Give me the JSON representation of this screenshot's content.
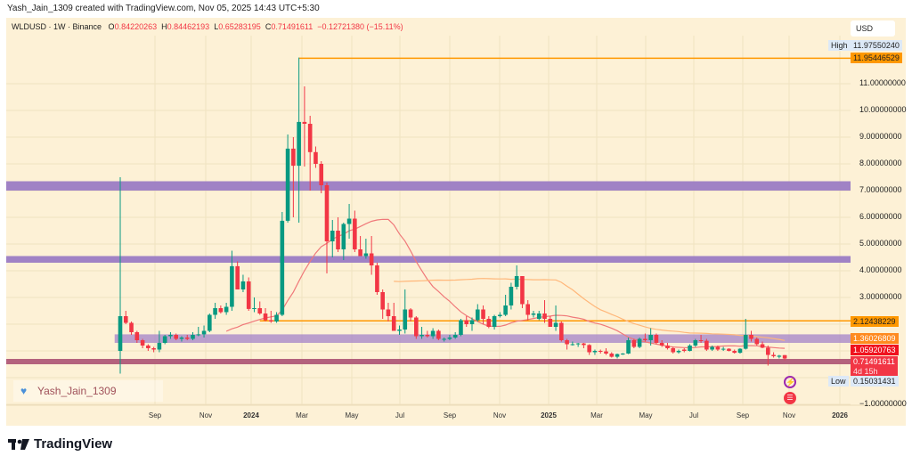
{
  "credit": "Yash_Jain_1309 created with TradingView.com, Nov 05, 2025 14:43 UTC+5:30",
  "legend": {
    "symbol": "WLDUSD · 1W · Binance",
    "o_label": "O",
    "o": "0.84220263",
    "h_label": "H",
    "h": "0.84462193",
    "l_label": "L",
    "l": "0.65283195",
    "c_label": "C",
    "c": "0.71491611",
    "change": "−0.12721380 (−15.11%)"
  },
  "currency": "USD",
  "price_axis": {
    "labels": [
      "11.00000000",
      "10.00000000",
      "9.00000000",
      "8.00000000",
      "7.00000000",
      "6.00000000",
      "5.00000000",
      "4.00000000",
      "3.00000000",
      "−1.00000000"
    ],
    "values": [
      11,
      10,
      9,
      8,
      7,
      6,
      5,
      4,
      3,
      -1
    ]
  },
  "tags": {
    "high_label": "High",
    "high": "11.97550240",
    "line_top": "11.95446529",
    "line_mid": "2.12438229",
    "ma_slow": "1.36026809",
    "ma_fast": "1.05920763",
    "last": "0.71491611",
    "countdown": "4d 15h",
    "low_label": "Low",
    "low": "0.15031431"
  },
  "time_axis": [
    "Sep",
    "Nov",
    "2024",
    "Mar",
    "May",
    "Jul",
    "Sep",
    "Nov",
    "2025",
    "Mar",
    "May",
    "Jul",
    "Sep",
    "Nov",
    "2026"
  ],
  "signature": "Yash_Jain_1309",
  "brand": "TradingView",
  "colors": {
    "up": "#089981",
    "down": "#f23645",
    "zone": "#9b7bc4",
    "zone_light": "#a98ac9",
    "zone_bottom": "#b05a78",
    "hline": "#ff9800",
    "ma_fast": "#f0797a",
    "ma_slow": "#ffb77a",
    "background": "#fdf1d6"
  },
  "chart_data": {
    "type": "candlestick",
    "interval": "1W",
    "first_week": "2023-07-24",
    "y_range": [
      -1,
      13
    ],
    "grid": true,
    "indicators": [
      {
        "type": "SMA",
        "period": 20,
        "color": "#f0797a"
      },
      {
        "type": "SMA",
        "period": 50,
        "color": "#ffb77a"
      }
    ],
    "horizontal_lines": [
      {
        "price": 11.95446529,
        "from_week": 32
      },
      {
        "price": 2.12438229,
        "from_week": 25
      }
    ],
    "zones": [
      {
        "from": 7.0,
        "to": 7.35,
        "from_week": -22
      },
      {
        "from": 4.3,
        "to": 4.55,
        "from_week": -22
      },
      {
        "from": 1.3,
        "to": 1.62,
        "from_week": -1
      },
      {
        "from": 0.5,
        "to": 0.7,
        "from_week": -22
      }
    ],
    "candles": [
      [
        1.0,
        7.5,
        0.15,
        2.3
      ],
      [
        2.3,
        2.5,
        2.0,
        2.05
      ],
      [
        2.05,
        2.1,
        1.6,
        1.7
      ],
      [
        1.7,
        1.75,
        1.3,
        1.4
      ],
      [
        1.4,
        1.45,
        1.1,
        1.2
      ],
      [
        1.2,
        1.25,
        1.0,
        1.1
      ],
      [
        1.1,
        1.15,
        0.95,
        1.05
      ],
      [
        1.05,
        1.75,
        0.95,
        1.3
      ],
      [
        1.3,
        1.6,
        1.25,
        1.55
      ],
      [
        1.55,
        1.7,
        1.45,
        1.6
      ],
      [
        1.6,
        1.65,
        1.4,
        1.45
      ],
      [
        1.45,
        1.55,
        1.35,
        1.5
      ],
      [
        1.5,
        1.6,
        1.4,
        1.45
      ],
      [
        1.45,
        1.7,
        1.4,
        1.6
      ],
      [
        1.6,
        1.9,
        1.55,
        1.62
      ],
      [
        1.62,
        1.95,
        1.5,
        1.75
      ],
      [
        1.75,
        2.4,
        1.7,
        2.35
      ],
      [
        2.35,
        2.8,
        2.2,
        2.6
      ],
      [
        2.6,
        2.7,
        2.4,
        2.45
      ],
      [
        2.45,
        2.8,
        2.35,
        2.65
      ],
      [
        2.65,
        4.75,
        2.5,
        4.17
      ],
      [
        4.17,
        4.35,
        3.3,
        3.3
      ],
      [
        3.3,
        3.85,
        3.2,
        3.6
      ],
      [
        3.6,
        3.75,
        2.5,
        2.57
      ],
      [
        2.57,
        3.0,
        2.45,
        2.6
      ],
      [
        2.6,
        2.85,
        2.35,
        2.4
      ],
      [
        2.4,
        2.6,
        2.1,
        2.15
      ],
      [
        2.15,
        2.5,
        2.05,
        2.1
      ],
      [
        2.1,
        2.45,
        2.05,
        2.35
      ],
      [
        2.35,
        6.2,
        2.3,
        5.87
      ],
      [
        5.87,
        9.1,
        5.8,
        8.57
      ],
      [
        8.57,
        9.0,
        6.0,
        7.93
      ],
      [
        7.93,
        11.98,
        5.8,
        9.57
      ],
      [
        9.57,
        10.9,
        7.9,
        9.5
      ],
      [
        9.5,
        9.8,
        7.0,
        8.44
      ],
      [
        8.44,
        8.65,
        7.85,
        8.0
      ],
      [
        8.0,
        8.1,
        6.9,
        7.2
      ],
      [
        7.2,
        7.3,
        3.9,
        5.1
      ],
      [
        5.1,
        5.9,
        4.5,
        5.5
      ],
      [
        5.5,
        6.0,
        4.7,
        4.8
      ],
      [
        4.8,
        5.8,
        4.4,
        5.75
      ],
      [
        5.75,
        6.5,
        5.2,
        5.95
      ],
      [
        5.95,
        6.25,
        4.7,
        4.8
      ],
      [
        4.8,
        5.3,
        4.55,
        4.55
      ],
      [
        4.55,
        5.2,
        4.45,
        4.65
      ],
      [
        4.65,
        5.3,
        3.85,
        4.2
      ],
      [
        4.2,
        4.3,
        3.1,
        3.2
      ],
      [
        3.2,
        3.3,
        2.2,
        2.55
      ],
      [
        2.55,
        2.8,
        2.1,
        2.3
      ],
      [
        2.3,
        2.8,
        1.75,
        1.75
      ],
      [
        1.75,
        1.95,
        1.6,
        1.8
      ],
      [
        1.8,
        3.3,
        1.65,
        2.55
      ],
      [
        2.55,
        2.6,
        2.1,
        2.25
      ],
      [
        2.25,
        2.3,
        1.45,
        1.55
      ],
      [
        1.55,
        1.9,
        1.45,
        1.6
      ],
      [
        1.6,
        1.75,
        1.5,
        1.55
      ],
      [
        1.55,
        1.85,
        1.45,
        1.75
      ],
      [
        1.75,
        1.8,
        1.4,
        1.45
      ],
      [
        1.45,
        1.5,
        1.35,
        1.45
      ],
      [
        1.45,
        1.6,
        1.4,
        1.5
      ],
      [
        1.5,
        1.7,
        1.45,
        1.6
      ],
      [
        1.6,
        2.2,
        1.55,
        2.15
      ],
      [
        2.15,
        2.3,
        1.9,
        2.0
      ],
      [
        2.0,
        2.25,
        1.75,
        2.15
      ],
      [
        2.15,
        2.75,
        2.1,
        2.55
      ],
      [
        2.55,
        2.7,
        2.0,
        2.2
      ],
      [
        2.2,
        2.3,
        1.85,
        1.9
      ],
      [
        1.9,
        2.35,
        1.8,
        2.3
      ],
      [
        2.3,
        2.45,
        2.25,
        2.35
      ],
      [
        2.35,
        3.1,
        2.3,
        2.7
      ],
      [
        2.7,
        3.55,
        2.55,
        3.4
      ],
      [
        3.4,
        4.2,
        3.3,
        3.8
      ],
      [
        3.8,
        3.8,
        2.6,
        2.75
      ],
      [
        2.75,
        2.9,
        2.15,
        2.35
      ],
      [
        2.35,
        2.5,
        2.25,
        2.4
      ],
      [
        2.2,
        2.5,
        2.15,
        2.4
      ],
      [
        2.4,
        2.9,
        2.05,
        2.2
      ],
      [
        2.2,
        2.3,
        1.9,
        1.9
      ],
      [
        1.9,
        2.7,
        1.75,
        2.05
      ],
      [
        2.05,
        2.1,
        1.35,
        1.4
      ],
      [
        1.4,
        1.45,
        1.05,
        1.25
      ],
      [
        1.25,
        1.35,
        1.2,
        1.25
      ],
      [
        1.25,
        1.3,
        1.15,
        1.28
      ],
      [
        1.28,
        1.3,
        1.1,
        1.22
      ],
      [
        1.22,
        1.25,
        0.85,
        0.95
      ],
      [
        0.95,
        1.05,
        0.85,
        1.0
      ],
      [
        1.0,
        1.05,
        0.9,
        0.98
      ],
      [
        0.98,
        1.1,
        0.85,
        0.9
      ],
      [
        0.9,
        0.95,
        0.75,
        0.78
      ],
      [
        0.78,
        0.9,
        0.72,
        0.88
      ],
      [
        0.88,
        0.92,
        0.85,
        0.9
      ],
      [
        0.9,
        1.5,
        0.88,
        1.4
      ],
      [
        1.4,
        1.45,
        1.1,
        1.15
      ],
      [
        1.15,
        1.5,
        1.1,
        1.45
      ],
      [
        1.45,
        1.65,
        1.35,
        1.4
      ],
      [
        1.4,
        1.85,
        1.2,
        1.6
      ],
      [
        1.6,
        1.65,
        1.25,
        1.3
      ],
      [
        1.3,
        1.4,
        1.15,
        1.2
      ],
      [
        1.2,
        1.3,
        1.05,
        1.1
      ],
      [
        1.1,
        1.15,
        0.9,
        0.95
      ],
      [
        0.95,
        1.05,
        0.9,
        1.0
      ],
      [
        1.05,
        1.1,
        0.95,
        1.0
      ],
      [
        1.0,
        1.25,
        0.98,
        1.2
      ],
      [
        1.2,
        1.45,
        1.15,
        1.4
      ],
      [
        1.4,
        1.6,
        1.3,
        1.38
      ],
      [
        1.38,
        1.45,
        1.0,
        1.05
      ],
      [
        1.05,
        1.2,
        1.0,
        1.15
      ],
      [
        1.15,
        1.2,
        1.0,
        1.05
      ],
      [
        1.05,
        1.15,
        1.0,
        1.08
      ],
      [
        1.08,
        1.1,
        0.98,
        1.0
      ],
      [
        1.0,
        1.05,
        0.9,
        0.93
      ],
      [
        0.93,
        1.1,
        0.9,
        1.08
      ],
      [
        1.08,
        2.2,
        1.05,
        1.6
      ],
      [
        1.6,
        1.75,
        1.35,
        1.45
      ],
      [
        1.45,
        1.5,
        1.2,
        1.25
      ],
      [
        1.25,
        1.35,
        1.1,
        1.12
      ],
      [
        1.12,
        1.2,
        0.45,
        0.85
      ],
      [
        0.85,
        0.95,
        0.75,
        0.8
      ],
      [
        0.78,
        0.85,
        0.72,
        0.82
      ],
      [
        0.84220263,
        0.84462193,
        0.65283195,
        0.71491611
      ]
    ]
  }
}
